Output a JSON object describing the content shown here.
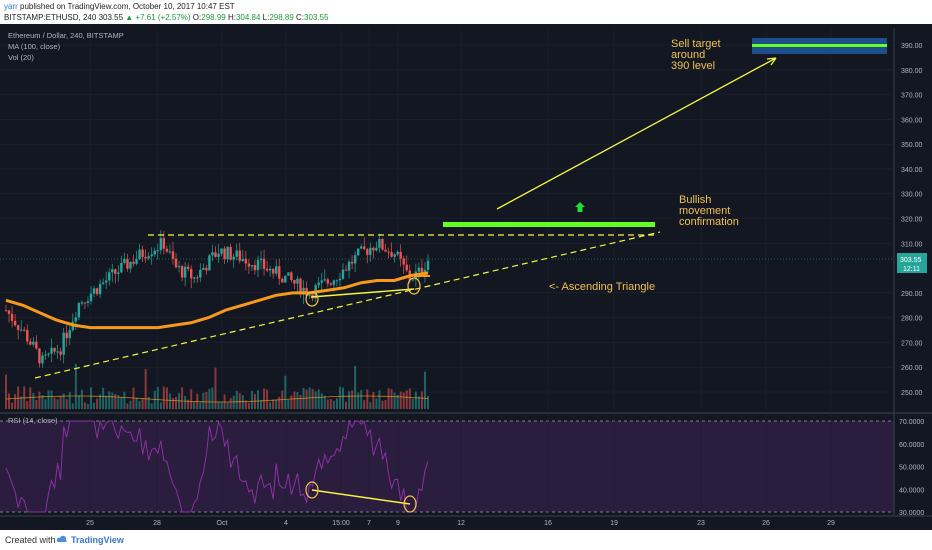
{
  "header": {
    "line1": {
      "user": "yarr",
      "text": " published on TradingView.com, October 10, 2017 10:47 EST"
    },
    "line2": {
      "symbol": "BITSTAMP:ETHUSD, 240",
      "price": "303.55",
      "change": "▲ +7.61 (+2.57%)",
      "o_label": "O:",
      "o": "298.99",
      "h_label": "H:",
      "h": "304.84",
      "l_label": "L:",
      "l": "298.89",
      "c_label": "C:",
      "c": "303.55"
    }
  },
  "legend": [
    "Ethereum / Dollar, 240, BITSTAMP",
    "MA (100, close)",
    "Vol (20)"
  ],
  "rsi_label": "RSI (14, close)",
  "annotations": {
    "sell_target": [
      "Sell target",
      "around",
      "390 level"
    ],
    "bullish": [
      "Bullish",
      "movement",
      "confirmation"
    ],
    "triangle": "<- Ascending Triangle"
  },
  "price_badge": {
    "price": "303.55",
    "time": "12:11"
  },
  "footer": {
    "created": "Created with",
    "brand": "TradingView"
  },
  "colors": {
    "background": "#131722",
    "up": "#26a69a",
    "down": "#ef5350",
    "ma": "#f79a1c",
    "annotation": "#f5f542",
    "annotation_text": "#f2c14e",
    "target_box": "#1f4e8c",
    "green_line": "#66ff22",
    "rsi_line": "#8c2fa6",
    "rsi_band": "#2a1d3d"
  },
  "chart_data": {
    "type": "candlestick",
    "symbol": "ETHUSD",
    "interval": "240",
    "exchange": "BITSTAMP",
    "ylim": [
      243,
      396
    ],
    "price_ticks": [
      390,
      380,
      370,
      360,
      350,
      340,
      330,
      320,
      310,
      290,
      280,
      270,
      260,
      250
    ],
    "x_ticks": [
      "25",
      "28",
      "Oct",
      "4",
      "15:00",
      "7",
      "9",
      "12",
      "16",
      "19",
      "23",
      "26",
      "29"
    ],
    "last": {
      "open": 298.99,
      "high": 304.84,
      "low": 298.89,
      "close": 303.55
    },
    "ma_100": [
      287,
      285,
      282,
      279,
      277,
      276,
      276,
      276,
      276,
      276,
      277,
      278,
      280,
      283,
      285,
      287,
      289,
      290,
      290,
      291,
      292,
      294,
      295,
      295,
      297,
      298
    ],
    "resistance": 313,
    "trendline": {
      "from": {
        "x": "Sep 22",
        "y": 255
      },
      "to": {
        "x": "Oct 17",
        "y": 314
      }
    },
    "targets": [
      {
        "label": "confirmation",
        "y": 317.5
      },
      {
        "label": "sell target",
        "y": 390
      }
    ],
    "rsi": {
      "period": 14,
      "ticks": [
        70,
        60,
        50,
        40,
        30
      ],
      "overbought": 70,
      "oversold": 30
    }
  }
}
